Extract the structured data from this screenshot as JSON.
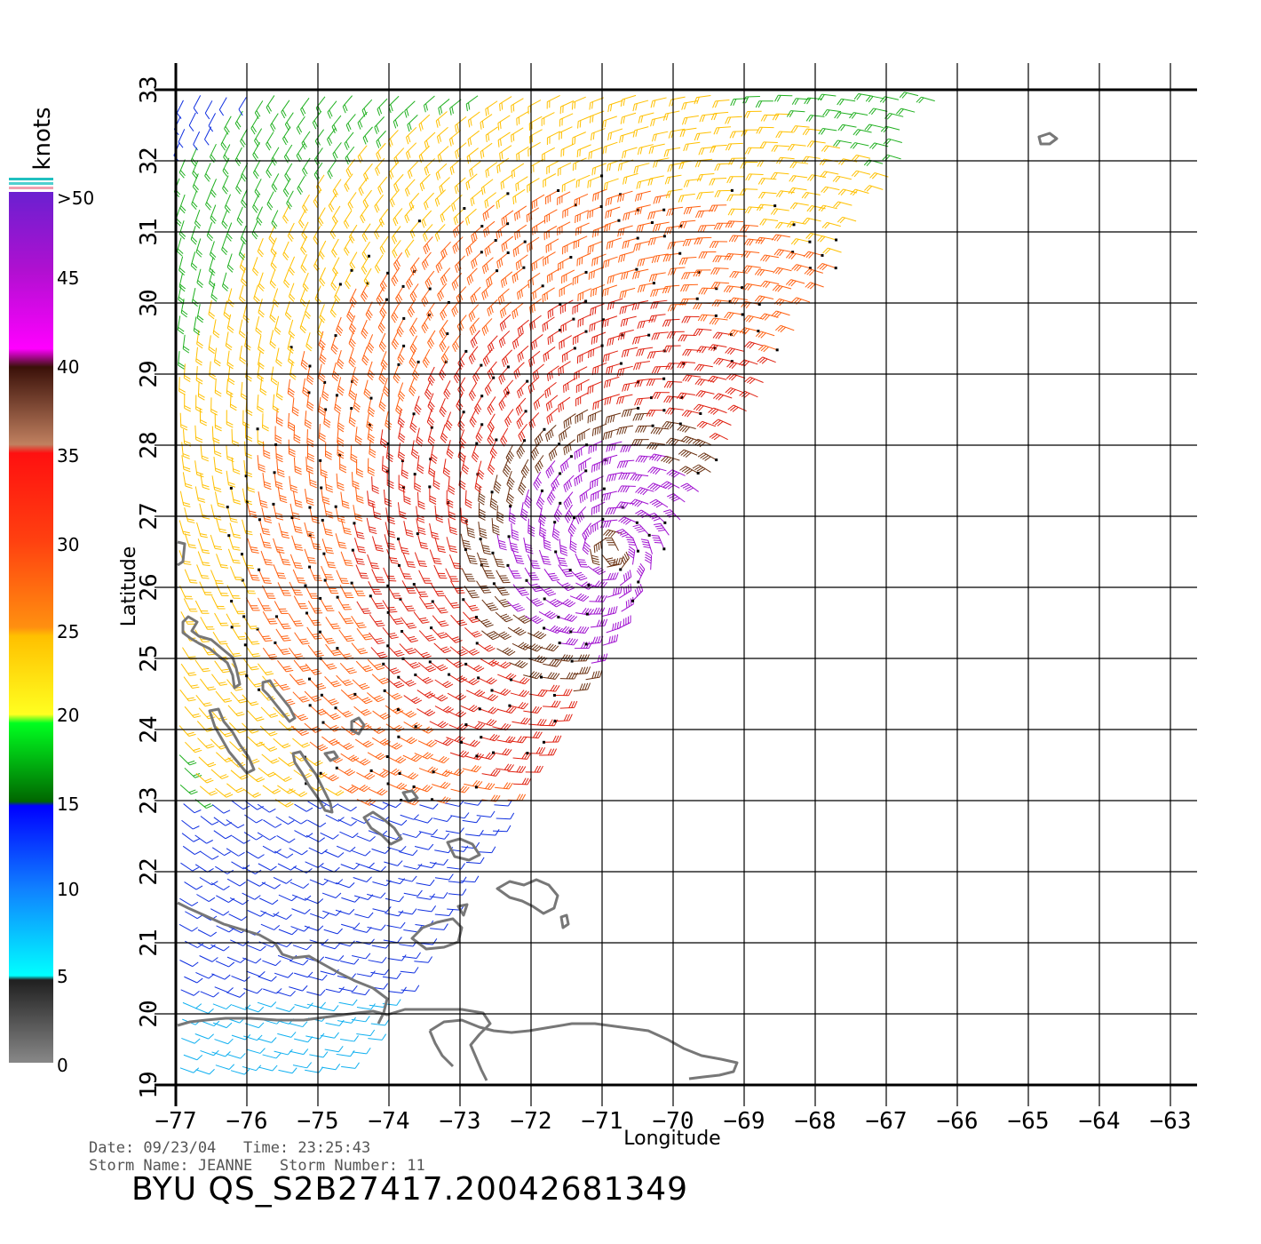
{
  "map": {
    "x_axis_title": "Longitude",
    "y_axis_title": "Latitude",
    "lon_ticks": [
      "-77",
      "-76",
      "-75",
      "-74",
      "-73",
      "-72",
      "-71",
      "-70",
      "-69",
      "-68",
      "-67",
      "-66",
      "-65",
      "-64",
      "-63"
    ],
    "lat_ticks": [
      "19",
      "20",
      "21",
      "22",
      "23",
      "24",
      "25",
      "26",
      "27",
      "28",
      "29",
      "30",
      "31",
      "32",
      "33"
    ],
    "lon_range": [
      -77,
      -63
    ],
    "lat_range": [
      19,
      33
    ],
    "grid": true,
    "coastline_color": "#777777",
    "storm_center": {
      "lon": -70.9,
      "lat": 26.5
    }
  },
  "legend": {
    "unit_label": "knots",
    "labels": [
      ">50",
      "45",
      "40",
      "35",
      "30",
      "25",
      "20",
      "15",
      "10",
      "5",
      "0"
    ],
    "colors": [
      "#7a1fd0",
      "#c000c8",
      "#ff10ff",
      "#5a2a10",
      "#b07040",
      "#ff1010",
      "#ff6a10",
      "#ffc000",
      "#ffff20",
      "#00ff00",
      "#008800",
      "#1010ff",
      "#10c0ff",
      "#202020",
      "#888888"
    ]
  },
  "footer": {
    "line1": "Date: 09/23/04   Time: 23:25:43",
    "line2": "Storm Name: JEANNE   Storm Number: 11",
    "title": "BYU QS_S2B27417.20042681349"
  }
}
